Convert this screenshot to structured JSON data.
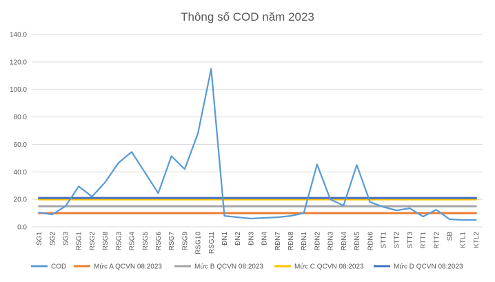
{
  "chart_data": {
    "type": "line",
    "title": "Thông số COD năm 2023",
    "xlabel": "",
    "ylabel": "",
    "ylim": [
      0,
      140
    ],
    "yticks": [
      "0.0",
      "20.0",
      "40.0",
      "60.0",
      "80.0",
      "100.0",
      "120.0",
      "140.0"
    ],
    "grid": true,
    "legend_position": "bottom",
    "categories": [
      "SG1",
      "SG2",
      "SG3",
      "RSG1",
      "RSG2",
      "RSG8",
      "RSG3",
      "RSG4",
      "RSG5",
      "RSG6",
      "RSG7",
      "RSG9",
      "RSG10",
      "RSG11",
      "ĐN1",
      "ĐN2",
      "ĐN3",
      "ĐN4",
      "RĐN7",
      "RĐN8",
      "RĐN1",
      "RĐN2",
      "RĐN3",
      "RĐN4",
      "RĐN5",
      "RĐN6",
      "STT1",
      "STT2",
      "STT3",
      "RTT1",
      "RTT2",
      "SB",
      "KTL1",
      "KTL2"
    ],
    "series": [
      {
        "name": "COD",
        "color": "#5b9bd5",
        "values": [
          10.5,
          9.0,
          15.0,
          29.5,
          22.0,
          32.5,
          46.5,
          54.5,
          39.5,
          24.5,
          51.5,
          42.0,
          68.0,
          115.0,
          8.0,
          7.0,
          6.0,
          6.5,
          7.0,
          8.0,
          10.0,
          45.5,
          20.0,
          15.5,
          45.0,
          18.0,
          14.5,
          12.0,
          13.5,
          7.5,
          12.5,
          5.5,
          5.0,
          5.0
        ]
      },
      {
        "name": "Mức A QCVN 08:2023",
        "color": "#ed7d31",
        "values": [
          10,
          10,
          10,
          10,
          10,
          10,
          10,
          10,
          10,
          10,
          10,
          10,
          10,
          10,
          10,
          10,
          10,
          10,
          10,
          10,
          10,
          10,
          10,
          10,
          10,
          10,
          10,
          10,
          10,
          10,
          10,
          10,
          10,
          10
        ]
      },
      {
        "name": "Mức B QCVN 08:2023",
        "color": "#a5a5a5",
        "values": [
          15,
          15,
          15,
          15,
          15,
          15,
          15,
          15,
          15,
          15,
          15,
          15,
          15,
          15,
          15,
          15,
          15,
          15,
          15,
          15,
          15,
          15,
          15,
          15,
          15,
          15,
          15,
          15,
          15,
          15,
          15,
          15,
          15,
          15
        ]
      },
      {
        "name": "Mức C QCVN 08:2023",
        "color": "#ffc000",
        "values": [
          20,
          20,
          20,
          20,
          20,
          20,
          20,
          20,
          20,
          20,
          20,
          20,
          20,
          20,
          20,
          20,
          20,
          20,
          20,
          20,
          20,
          20,
          20,
          20,
          20,
          20,
          20,
          20,
          20,
          20,
          20,
          20,
          20,
          20
        ]
      },
      {
        "name": "Mức D QCVN 08:2023",
        "color": "#4472c4",
        "values": [
          21,
          21,
          21,
          21,
          21,
          21,
          21,
          21,
          21,
          21,
          21,
          21,
          21,
          21,
          21,
          21,
          21,
          21,
          21,
          21,
          21,
          21,
          21,
          21,
          21,
          21,
          21,
          21,
          21,
          21,
          21,
          21,
          21,
          21
        ]
      }
    ]
  }
}
